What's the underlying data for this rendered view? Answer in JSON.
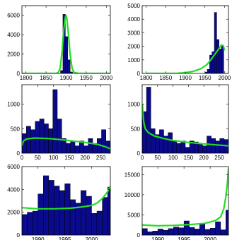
{
  "colors": {
    "bar": "#0a0a8c",
    "bar_edge": "#000000",
    "fit": "#22dd22",
    "axes": "#000000",
    "background": "#ffffff"
  },
  "chart_data": [
    {
      "type": "bar",
      "overlay": "line",
      "xlim": [
        1790,
        2010
      ],
      "ylim": [
        0,
        7000
      ],
      "xticks": [
        "1800",
        "1850",
        "1900",
        "1950",
        "2000"
      ],
      "yticks": [
        "0",
        "2000",
        "4000",
        "6000"
      ],
      "bins": [
        {
          "x0": 1886,
          "x1": 1892,
          "y": 300
        },
        {
          "x0": 1892,
          "x1": 1898,
          "y": 6100
        },
        {
          "x0": 1898,
          "x1": 1904,
          "y": 3800
        },
        {
          "x0": 1904,
          "x1": 1910,
          "y": 1400
        },
        {
          "x0": 1910,
          "x1": 1916,
          "y": 150
        }
      ],
      "fit": {
        "x": [
          1790,
          1875,
          1880,
          1885,
          1890,
          1894,
          1898,
          1900,
          1902,
          1906,
          1910,
          1915,
          1920,
          1930,
          2010
        ],
        "y": [
          0,
          0,
          80,
          500,
          2300,
          4500,
          5800,
          6000,
          5600,
          3900,
          1900,
          500,
          100,
          0,
          0
        ]
      }
    },
    {
      "type": "bar",
      "overlay": "line",
      "xlim": [
        1790,
        2010
      ],
      "ylim": [
        0,
        5000
      ],
      "xticks": [
        "1800",
        "1850",
        "1900",
        "1950",
        "2000"
      ],
      "yticks": [
        "0",
        "1000",
        "2000",
        "3000",
        "4000",
        "5000"
      ],
      "bins": [
        {
          "x0": 1950,
          "x1": 1956,
          "y": 100
        },
        {
          "x0": 1956,
          "x1": 1962,
          "y": 300
        },
        {
          "x0": 1962,
          "x1": 1968,
          "y": 1350
        },
        {
          "x0": 1968,
          "x1": 1974,
          "y": 1600
        },
        {
          "x0": 1974,
          "x1": 1980,
          "y": 4500
        },
        {
          "x0": 1980,
          "x1": 1986,
          "y": 2500
        },
        {
          "x0": 1986,
          "x1": 1992,
          "y": 1800
        },
        {
          "x0": 1992,
          "x1": 1998,
          "y": 2000
        }
      ],
      "fit": {
        "x": [
          1800,
          1850,
          1880,
          1900,
          1920,
          1940,
          1955,
          1965,
          1975,
          1985,
          1992,
          1997,
          2000
        ],
        "y": [
          0,
          0,
          10,
          50,
          150,
          350,
          650,
          1000,
          1400,
          1800,
          2100,
          2050,
          1700
        ]
      }
    },
    {
      "type": "bar",
      "overlay": "line",
      "xlim": [
        0,
        280
      ],
      "ylim": [
        0,
        1400
      ],
      "xticks": [
        "0",
        "50",
        "100",
        "150",
        "200",
        "250"
      ],
      "yticks": [
        "0",
        "500",
        "1000"
      ],
      "bins": [
        {
          "x0": 0,
          "x1": 14,
          "y": 400
        },
        {
          "x0": 14,
          "x1": 28,
          "y": 550
        },
        {
          "x0": 28,
          "x1": 42,
          "y": 480
        },
        {
          "x0": 42,
          "x1": 56,
          "y": 650
        },
        {
          "x0": 56,
          "x1": 70,
          "y": 700
        },
        {
          "x0": 70,
          "x1": 84,
          "y": 600
        },
        {
          "x0": 84,
          "x1": 98,
          "y": 500
        },
        {
          "x0": 98,
          "x1": 112,
          "y": 1300
        },
        {
          "x0": 112,
          "x1": 126,
          "y": 700
        },
        {
          "x0": 126,
          "x1": 140,
          "y": 300
        },
        {
          "x0": 140,
          "x1": 154,
          "y": 200
        },
        {
          "x0": 154,
          "x1": 168,
          "y": 250
        },
        {
          "x0": 168,
          "x1": 182,
          "y": 150
        },
        {
          "x0": 182,
          "x1": 196,
          "y": 250
        },
        {
          "x0": 196,
          "x1": 210,
          "y": 150
        },
        {
          "x0": 210,
          "x1": 224,
          "y": 300
        },
        {
          "x0": 224,
          "x1": 238,
          "y": 200
        },
        {
          "x0": 238,
          "x1": 252,
          "y": 300
        },
        {
          "x0": 252,
          "x1": 266,
          "y": 480
        },
        {
          "x0": 266,
          "x1": 280,
          "y": 250
        }
      ],
      "fit": {
        "x": [
          0,
          5,
          15,
          40,
          80,
          120,
          160,
          200,
          240,
          265,
          280
        ],
        "y": [
          150,
          250,
          290,
          310,
          300,
          280,
          250,
          220,
          180,
          130,
          90
        ]
      }
    },
    {
      "type": "bar",
      "overlay": "line",
      "xlim": [
        0,
        280
      ],
      "ylim": [
        0,
        1400
      ],
      "xticks": [
        "0",
        "50",
        "100",
        "150",
        "200",
        "250"
      ],
      "yticks": [
        "0",
        "500",
        "1000"
      ],
      "bins": [
        {
          "x0": 0,
          "x1": 14,
          "y": 850
        },
        {
          "x0": 14,
          "x1": 28,
          "y": 1350
        },
        {
          "x0": 28,
          "x1": 42,
          "y": 500
        },
        {
          "x0": 42,
          "x1": 56,
          "y": 380
        },
        {
          "x0": 56,
          "x1": 70,
          "y": 480
        },
        {
          "x0": 70,
          "x1": 84,
          "y": 350
        },
        {
          "x0": 84,
          "x1": 98,
          "y": 420
        },
        {
          "x0": 98,
          "x1": 112,
          "y": 250
        },
        {
          "x0": 112,
          "x1": 126,
          "y": 200
        },
        {
          "x0": 126,
          "x1": 140,
          "y": 250
        },
        {
          "x0": 140,
          "x1": 154,
          "y": 120
        },
        {
          "x0": 154,
          "x1": 168,
          "y": 250
        },
        {
          "x0": 168,
          "x1": 182,
          "y": 230
        },
        {
          "x0": 182,
          "x1": 196,
          "y": 200
        },
        {
          "x0": 196,
          "x1": 210,
          "y": 150
        },
        {
          "x0": 210,
          "x1": 224,
          "y": 350
        },
        {
          "x0": 224,
          "x1": 238,
          "y": 300
        },
        {
          "x0": 238,
          "x1": 252,
          "y": 250
        },
        {
          "x0": 252,
          "x1": 266,
          "y": 300
        },
        {
          "x0": 266,
          "x1": 280,
          "y": 280
        }
      ],
      "fit": {
        "x": [
          1,
          3,
          6,
          10,
          20,
          40,
          70,
          100,
          150,
          200,
          250,
          280
        ],
        "y": [
          1000,
          750,
          600,
          500,
          420,
          350,
          300,
          260,
          220,
          190,
          165,
          150
        ]
      }
    },
    {
      "type": "bar",
      "overlay": "line",
      "xlim": [
        1987,
        2003.5
      ],
      "ylim": [
        0,
        6000
      ],
      "xticks": [
        "1990",
        "1995",
        "2000"
      ],
      "yticks": [
        "0",
        "2000",
        "4000",
        "6000"
      ],
      "bins": [
        {
          "x0": 1987,
          "x1": 1988,
          "y": 1800
        },
        {
          "x0": 1988,
          "x1": 1989,
          "y": 2000
        },
        {
          "x0": 1989,
          "x1": 1990,
          "y": 2100
        },
        {
          "x0": 1990,
          "x1": 1991,
          "y": 3600
        },
        {
          "x0": 1991,
          "x1": 1992,
          "y": 5200
        },
        {
          "x0": 1992,
          "x1": 1993,
          "y": 4800
        },
        {
          "x0": 1993,
          "x1": 1994,
          "y": 4300
        },
        {
          "x0": 1994,
          "x1": 1995,
          "y": 3900
        },
        {
          "x0": 1995,
          "x1": 1996,
          "y": 4500
        },
        {
          "x0": 1996,
          "x1": 1997,
          "y": 3100
        },
        {
          "x0": 1997,
          "x1": 1998,
          "y": 2800
        },
        {
          "x0": 1998,
          "x1": 1999,
          "y": 3900
        },
        {
          "x0": 1999,
          "x1": 2000,
          "y": 3400
        },
        {
          "x0": 2000,
          "x1": 2001,
          "y": 1900
        },
        {
          "x0": 2001,
          "x1": 2002,
          "y": 2100
        },
        {
          "x0": 2002,
          "x1": 2003,
          "y": 3300
        },
        {
          "x0": 2003,
          "x1": 2003.5,
          "y": 4200
        }
      ],
      "fit": {
        "x": [
          1987,
          1990,
          1993,
          1996,
          1998,
          2000,
          2001,
          2002,
          2003,
          2003.5
        ],
        "y": [
          2400,
          2300,
          2300,
          2350,
          2450,
          2600,
          2800,
          3200,
          3800,
          4300
        ]
      }
    },
    {
      "type": "bar",
      "overlay": "line",
      "xlim": [
        1987,
        2003.5
      ],
      "ylim": [
        0,
        17000
      ],
      "xticks": [
        "1990",
        "1995",
        "2000"
      ],
      "yticks": [
        "0",
        "5000",
        "10000",
        "15000"
      ],
      "bins": [
        {
          "x0": 1987,
          "x1": 1988,
          "y": 1600
        },
        {
          "x0": 1988,
          "x1": 1989,
          "y": 800
        },
        {
          "x0": 1989,
          "x1": 1990,
          "y": 1000
        },
        {
          "x0": 1990,
          "x1": 1991,
          "y": 1500
        },
        {
          "x0": 1991,
          "x1": 1992,
          "y": 1200
        },
        {
          "x0": 1992,
          "x1": 1993,
          "y": 1600
        },
        {
          "x0": 1993,
          "x1": 1994,
          "y": 2000
        },
        {
          "x0": 1994,
          "x1": 1995,
          "y": 1800
        },
        {
          "x0": 1995,
          "x1": 1996,
          "y": 3500
        },
        {
          "x0": 1996,
          "x1": 1997,
          "y": 1900
        },
        {
          "x0": 1997,
          "x1": 1998,
          "y": 1500
        },
        {
          "x0": 1998,
          "x1": 1999,
          "y": 2800
        },
        {
          "x0": 1999,
          "x1": 2000,
          "y": 1400
        },
        {
          "x0": 2000,
          "x1": 2001,
          "y": 1700
        },
        {
          "x0": 2001,
          "x1": 2002,
          "y": 3300
        },
        {
          "x0": 2002,
          "x1": 2003,
          "y": 1300
        },
        {
          "x0": 2003,
          "x1": 2003.5,
          "y": 6200
        }
      ],
      "fit": {
        "x": [
          1987,
          1990,
          1993,
          1996,
          1999,
          2001,
          2002,
          2002.6,
          2003,
          2003.3,
          2003.5
        ],
        "y": [
          2500,
          2300,
          2400,
          2600,
          2900,
          3600,
          4500,
          6500,
          9500,
          13000,
          16500
        ]
      }
    }
  ]
}
